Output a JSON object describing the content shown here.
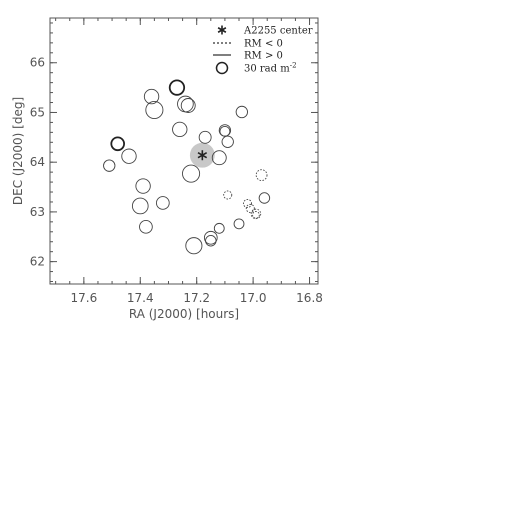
{
  "chart_data": {
    "type": "scatter",
    "title": "",
    "xlabel": "RA (J2000) [hours]",
    "ylabel": "DEC (J2000) [deg]",
    "xlim": [
      17.72,
      16.77
    ],
    "ylim": [
      61.55,
      66.9
    ],
    "x_ticks": [
      "17.6",
      "17.4",
      "17.2",
      "17.0",
      "16.8"
    ],
    "y_ticks": [
      "62",
      "63",
      "64",
      "65",
      "66"
    ],
    "x_tick_values": [
      17.6,
      17.4,
      17.2,
      17.0,
      16.8
    ],
    "y_tick_values": [
      62,
      63,
      64,
      65,
      66
    ],
    "grid": false,
    "legend_position": "top-right",
    "legend": [
      {
        "symbol": "asterisk",
        "label": "A2255 center"
      },
      {
        "symbol": "dashed-line",
        "label": "RM < 0"
      },
      {
        "symbol": "solid-line",
        "label": "RM > 0"
      },
      {
        "symbol": "circle",
        "label": "30 rad m",
        "label_sup": "-2"
      }
    ],
    "center": {
      "ra": 17.18,
      "dec": 64.14,
      "highlight_radius_deg": 0.25
    },
    "reference_rm": 30,
    "series": [
      {
        "name": "RM > 0",
        "points": [
          {
            "ra": 17.48,
            "dec": 64.37,
            "rm": 25,
            "bold": true
          },
          {
            "ra": 17.51,
            "dec": 63.93,
            "rm": 20
          },
          {
            "ra": 17.44,
            "dec": 64.12,
            "rm": 32
          },
          {
            "ra": 17.36,
            "dec": 65.32,
            "rm": 32
          },
          {
            "ra": 17.35,
            "dec": 65.05,
            "rm": 45
          },
          {
            "ra": 17.27,
            "dec": 65.5,
            "rm": 32,
            "bold": true
          },
          {
            "ra": 17.24,
            "dec": 65.17,
            "rm": 38
          },
          {
            "ra": 17.23,
            "dec": 65.14,
            "rm": 30
          },
          {
            "ra": 17.26,
            "dec": 64.66,
            "rm": 32
          },
          {
            "ra": 17.17,
            "dec": 64.5,
            "rm": 22
          },
          {
            "ra": 17.22,
            "dec": 63.77,
            "rm": 45
          },
          {
            "ra": 17.12,
            "dec": 64.09,
            "rm": 30
          },
          {
            "ra": 17.1,
            "dec": 64.64,
            "rm": 20
          },
          {
            "ra": 17.1,
            "dec": 64.62,
            "rm": 15
          },
          {
            "ra": 17.09,
            "dec": 64.41,
            "rm": 20
          },
          {
            "ra": 17.04,
            "dec": 65.01,
            "rm": 20
          },
          {
            "ra": 17.39,
            "dec": 63.52,
            "rm": 32
          },
          {
            "ra": 17.4,
            "dec": 63.12,
            "rm": 38
          },
          {
            "ra": 17.32,
            "dec": 63.18,
            "rm": 25
          },
          {
            "ra": 17.38,
            "dec": 62.7,
            "rm": 25
          },
          {
            "ra": 17.21,
            "dec": 62.32,
            "rm": 40
          },
          {
            "ra": 17.15,
            "dec": 62.48,
            "rm": 25
          },
          {
            "ra": 17.15,
            "dec": 62.42,
            "rm": 17
          },
          {
            "ra": 17.12,
            "dec": 62.67,
            "rm": 15
          },
          {
            "ra": 17.05,
            "dec": 62.76,
            "rm": 15
          },
          {
            "ra": 16.96,
            "dec": 63.28,
            "rm": 17
          }
        ]
      },
      {
        "name": "RM < 0",
        "points": [
          {
            "ra": 16.97,
            "dec": 63.74,
            "rm": 18
          },
          {
            "ra": 17.09,
            "dec": 63.34,
            "rm": 10
          },
          {
            "ra": 17.02,
            "dec": 63.17,
            "rm": 10
          },
          {
            "ra": 17.01,
            "dec": 63.07,
            "rm": 10
          },
          {
            "ra": 16.99,
            "dec": 62.96,
            "rm": 14
          },
          {
            "ra": 16.99,
            "dec": 62.94,
            "rm": 7
          }
        ]
      }
    ]
  }
}
